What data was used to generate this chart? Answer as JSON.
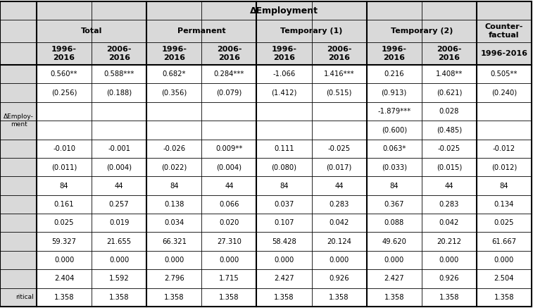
{
  "title": "ΔEmployment",
  "groups": [
    {
      "label": "Total",
      "cols": [
        0,
        1
      ]
    },
    {
      "label": "Permanent",
      "cols": [
        2,
        3
      ]
    },
    {
      "label": "Temporary (1)",
      "cols": [
        4,
        5
      ]
    },
    {
      "label": "Temporary (2)",
      "cols": [
        6,
        7
      ]
    },
    {
      "label": "Counter-\nfactual",
      "cols": [
        8
      ]
    }
  ],
  "subcols": [
    "1996-\n2016",
    "2006-\n2016",
    "1996-\n2016",
    "2006-\n2016",
    "1996-\n2016",
    "2006-\n2016",
    "1996-\n2016",
    "2006-\n2016",
    "1996-2016"
  ],
  "rows": [
    [
      "0.560**",
      "0.588***",
      "0.682*",
      "0.284***",
      "-1.066",
      "1.416***",
      "0.216",
      "1.408**",
      "0.505**"
    ],
    [
      "(0.256)",
      "(0.188)",
      "(0.356)",
      "(0.079)",
      "(1.412)",
      "(0.515)",
      "(0.913)",
      "(0.621)",
      "(0.240)"
    ],
    [
      "",
      "",
      "",
      "",
      "",
      "",
      "-1.879***",
      "0.028",
      ""
    ],
    [
      "",
      "",
      "",
      "",
      "",
      "",
      "(0.600)",
      "(0.485)",
      ""
    ],
    [
      "-0.010",
      "-0.001",
      "-0.026",
      "0.009**",
      "0.111",
      "-0.025",
      "0.063*",
      "-0.025",
      "-0.012"
    ],
    [
      "(0.011)",
      "(0.004)",
      "(0.022)",
      "(0.004)",
      "(0.080)",
      "(0.017)",
      "(0.033)",
      "(0.015)",
      "(0.012)"
    ],
    [
      "84",
      "44",
      "84",
      "44",
      "84",
      "44",
      "84",
      "44",
      "84"
    ],
    [
      "0.161",
      "0.257",
      "0.138",
      "0.066",
      "0.037",
      "0.283",
      "0.367",
      "0.283",
      "0.134"
    ],
    [
      "0.025",
      "0.019",
      "0.034",
      "0.020",
      "0.107",
      "0.042",
      "0.088",
      "0.042",
      "0.025"
    ],
    [
      "59.327",
      "21.655",
      "66.321",
      "27.310",
      "58.428",
      "20.124",
      "49.620",
      "20.212",
      "61.667"
    ],
    [
      "0.000",
      "0.000",
      "0.000",
      "0.000",
      "0.000",
      "0.000",
      "0.000",
      "0.000",
      "0.000"
    ],
    [
      "2.404",
      "1.592",
      "2.796",
      "1.715",
      "2.427",
      "0.926",
      "2.427",
      "0.926",
      "2.504"
    ],
    [
      "1.358",
      "1.358",
      "1.358",
      "1.358",
      "1.358",
      "1.358",
      "1.358",
      "1.358",
      "1.358"
    ]
  ],
  "left_labels": {
    "2": "ΔEmploy-\nment",
    "12": "ritical"
  },
  "left_label_spans": {
    "2": [
      2,
      3
    ]
  },
  "bg_gray": "#d9d9d9",
  "bg_white": "#ffffff",
  "lw_thin": 0.6,
  "lw_thick": 1.5,
  "font_size_data": 7.2,
  "font_size_header": 8.0,
  "font_size_title": 9.0
}
